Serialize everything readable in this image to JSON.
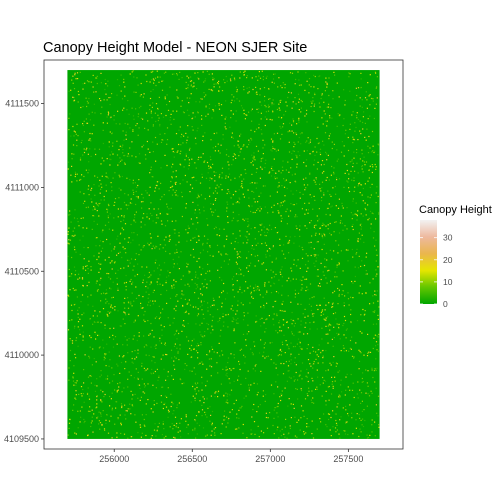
{
  "chart_data": {
    "type": "heatmap",
    "title": "Canopy Height Model - NEON SJER Site",
    "xlabel": "",
    "ylabel": "",
    "x_range": [
      255700,
      257700
    ],
    "y_range": [
      4109500,
      4111700
    ],
    "xlim": [
      255550,
      257850
    ],
    "ylim": [
      4109440,
      4111760
    ],
    "x_ticks": [
      256000,
      256500,
      257000,
      257500
    ],
    "y_ticks": [
      4109500,
      4110000,
      4110500,
      4111000,
      4111500
    ],
    "grid": false,
    "legend": {
      "title": "Canopy Height",
      "position": "right",
      "range": [
        0,
        38
      ],
      "ticks": [
        0,
        10,
        20,
        30
      ],
      "colors": [
        "#00A600",
        "#63C600",
        "#E6E600",
        "#EAB64E",
        "#EEB99F",
        "#F2F2F2"
      ]
    },
    "value_distribution": {
      "background_value": 0,
      "sparse_values_range": [
        3,
        20
      ]
    }
  }
}
